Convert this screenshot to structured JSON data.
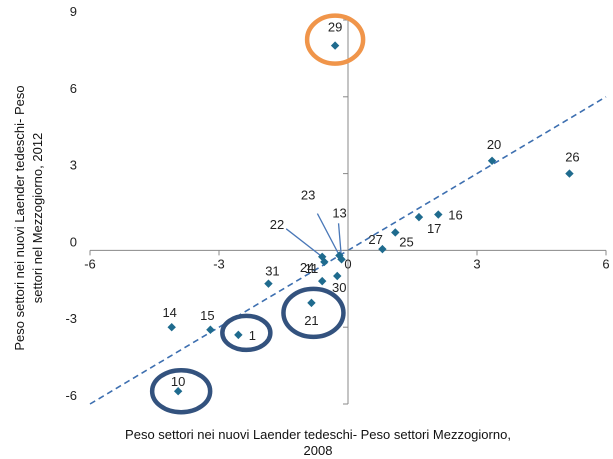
{
  "chart_data": {
    "type": "scatter",
    "title": "",
    "xlabel_lines": [
      "Peso settori nei nuovi Laender tedeschi- Peso settori Mezzogiorno,",
      "2008"
    ],
    "ylabel_lines": [
      "Peso settori nei nuovi Laender tedeschi- Peso",
      "settori nel Mezzogiorno, 2012"
    ],
    "xlim": [
      -6,
      6
    ],
    "ylim": [
      -6,
      9
    ],
    "x_ticks": [
      -6,
      -3,
      0,
      3,
      6
    ],
    "y_ticks": [
      -6,
      -3,
      0,
      3,
      6,
      9
    ],
    "x_tick_labels": [
      "-6",
      "-3",
      "0",
      "3",
      "6"
    ],
    "y_tick_labels": [
      "-6",
      "-3",
      "0",
      "3",
      "6",
      "9"
    ],
    "grid": false,
    "marker_color": "#1F6B8E",
    "reference_line": {
      "style": "dashed",
      "color": "#3D6FB0",
      "from": [
        -6,
        -6
      ],
      "to": [
        6,
        6
      ]
    },
    "points": [
      {
        "label": "29",
        "x": -0.3,
        "y": 8.0,
        "highlight": "orange"
      },
      {
        "label": "20",
        "x": 3.35,
        "y": 3.5
      },
      {
        "label": "26",
        "x": 5.15,
        "y": 3.0
      },
      {
        "label": "16",
        "x": 2.1,
        "y": 1.4
      },
      {
        "label": "17",
        "x": 1.65,
        "y": 1.3
      },
      {
        "label": "25",
        "x": 1.1,
        "y": 0.7
      },
      {
        "label": "27",
        "x": 0.8,
        "y": 0.05
      },
      {
        "label": "24",
        "x": -0.55,
        "y": -0.45
      },
      {
        "label": "22",
        "x": -0.6,
        "y": -0.25
      },
      {
        "label": "23",
        "x": -0.2,
        "y": -0.2
      },
      {
        "label": "13",
        "x": -0.15,
        "y": -0.35
      },
      {
        "label": "31",
        "x": -1.85,
        "y": -1.3
      },
      {
        "label": "11",
        "x": -0.6,
        "y": -1.2
      },
      {
        "label": "30",
        "x": -0.25,
        "y": -1.0
      },
      {
        "label": "21",
        "x": -0.85,
        "y": -2.05,
        "highlight": "blue"
      },
      {
        "label": "14",
        "x": -4.1,
        "y": -3.0
      },
      {
        "label": "15",
        "x": -3.2,
        "y": -3.1
      },
      {
        "label": "1",
        "x": -2.55,
        "y": -3.3,
        "highlight": "blue"
      },
      {
        "label": "10",
        "x": -3.95,
        "y": -5.5,
        "highlight": "blue"
      }
    ]
  },
  "colors": {
    "highlight_orange": "#F0954A",
    "highlight_blue": "#33527E",
    "axis": "#888888",
    "callout_line": "#4A78B8"
  }
}
